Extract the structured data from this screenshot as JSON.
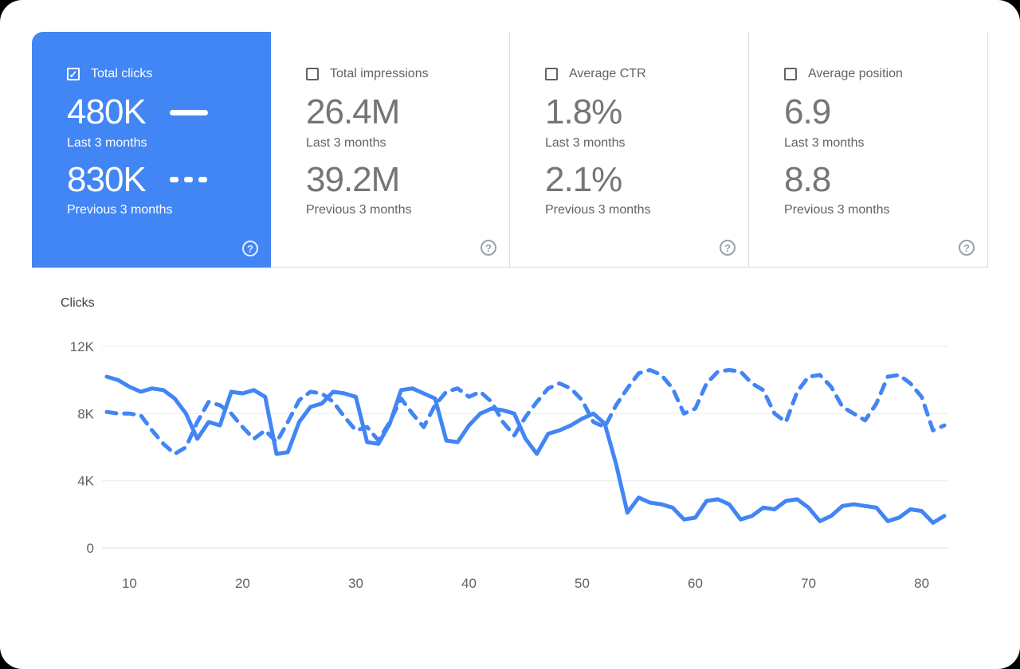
{
  "colors": {
    "accent": "#4285f4",
    "grid": "#e8eaed",
    "axis_text": "#5f6368",
    "value_text": "#757575",
    "surface": "#ffffff",
    "outside": "#000000"
  },
  "icons": {
    "check": "✓",
    "help": "?"
  },
  "cards": [
    {
      "id": "total-clicks",
      "label": "Total clicks",
      "checked": true,
      "selected": true,
      "primary": {
        "value": "480K",
        "period": "Last 3 months"
      },
      "secondary": {
        "value": "830K",
        "period": "Previous 3 months"
      }
    },
    {
      "id": "total-impressions",
      "label": "Total impressions",
      "checked": false,
      "selected": false,
      "primary": {
        "value": "26.4M",
        "period": "Last 3 months"
      },
      "secondary": {
        "value": "39.2M",
        "period": "Previous 3 months"
      }
    },
    {
      "id": "average-ctr",
      "label": "Average CTR",
      "checked": false,
      "selected": false,
      "primary": {
        "value": "1.8%",
        "period": "Last 3 months"
      },
      "secondary": {
        "value": "2.1%",
        "period": "Previous 3 months"
      }
    },
    {
      "id": "average-position",
      "label": "Average position",
      "checked": false,
      "selected": false,
      "primary": {
        "value": "6.9",
        "period": "Last 3 months"
      },
      "secondary": {
        "value": "8.8",
        "period": "Previous 3 months"
      }
    }
  ],
  "chart_data": {
    "type": "line",
    "title": "Clicks",
    "xlim": [
      8,
      82
    ],
    "ylim": [
      0,
      12000
    ],
    "grid": true,
    "ytick_values": [
      0,
      4000,
      8000,
      12000
    ],
    "ytick_labels": [
      "0",
      "4K",
      "8K",
      "12K"
    ],
    "xticks": [
      10,
      20,
      30,
      40,
      50,
      60,
      70,
      80
    ],
    "x": [
      8,
      9,
      10,
      11,
      12,
      13,
      14,
      15,
      16,
      17,
      18,
      19,
      20,
      21,
      22,
      23,
      24,
      25,
      26,
      27,
      28,
      29,
      30,
      31,
      32,
      33,
      34,
      35,
      36,
      37,
      38,
      39,
      40,
      41,
      42,
      43,
      44,
      45,
      46,
      47,
      48,
      49,
      50,
      51,
      52,
      53,
      54,
      55,
      56,
      57,
      58,
      59,
      60,
      61,
      62,
      63,
      64,
      65,
      66,
      67,
      68,
      69,
      70,
      71,
      72,
      73,
      74,
      75,
      76,
      77,
      78,
      79,
      80,
      81,
      82
    ],
    "series": [
      {
        "name": "Last 3 months",
        "style": "solid",
        "color": "#4285f4",
        "values": [
          10200,
          10000,
          9600,
          9300,
          9500,
          9400,
          8900,
          8000,
          6500,
          7500,
          7300,
          9300,
          9200,
          9400,
          9000,
          5600,
          5700,
          7500,
          8400,
          8600,
          9300,
          9200,
          9000,
          6300,
          6200,
          7400,
          9400,
          9500,
          9200,
          8900,
          6400,
          6300,
          7300,
          8000,
          8300,
          8200,
          8000,
          6500,
          5600,
          6800,
          7000,
          7300,
          7700,
          8000,
          7400,
          5000,
          2100,
          3000,
          2700,
          2600,
          2400,
          1700,
          1800,
          2800,
          2900,
          2600,
          1700,
          1900,
          2400,
          2300,
          2800,
          2900,
          2400,
          1600,
          1900,
          2500,
          2600,
          2500,
          2400,
          1600,
          1800,
          2300,
          2200,
          1500,
          1900
        ]
      },
      {
        "name": "Previous 3 months",
        "style": "dashed",
        "color": "#4285f4",
        "values": [
          8100,
          8000,
          8000,
          7900,
          7000,
          6200,
          5600,
          6000,
          7500,
          8700,
          8500,
          8000,
          7200,
          6500,
          7000,
          6300,
          7500,
          8800,
          9300,
          9200,
          8700,
          7800,
          7000,
          7200,
          6400,
          7500,
          8900,
          8000,
          7200,
          8500,
          9300,
          9500,
          9000,
          9300,
          8700,
          7500,
          6700,
          7800,
          8700,
          9500,
          9800,
          9500,
          8800,
          7500,
          7200,
          8500,
          9500,
          10400,
          10600,
          10300,
          9500,
          8000,
          8300,
          9800,
          10500,
          10600,
          10500,
          9800,
          9400,
          8000,
          7500,
          9300,
          10200,
          10300,
          9600,
          8400,
          8000,
          7600,
          8600,
          10200,
          10300,
          9800,
          9000,
          7000,
          7300
        ]
      }
    ]
  }
}
